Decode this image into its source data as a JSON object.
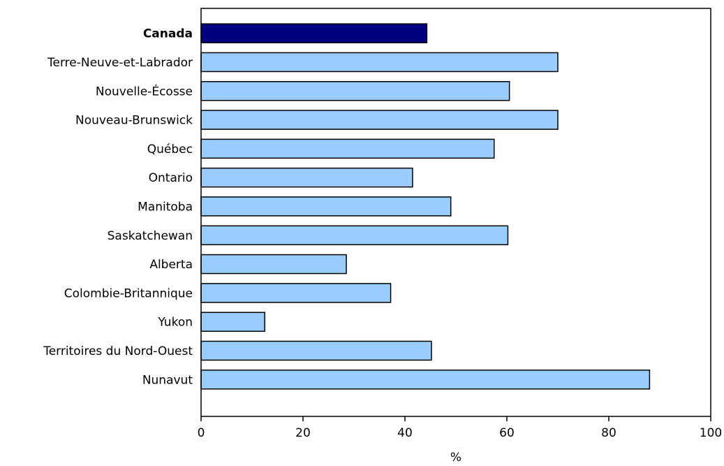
{
  "chart_data": {
    "type": "bar",
    "orientation": "horizontal",
    "categories": [
      "Canada",
      "Terre-Neuve-et-Labrador",
      "Nouvelle-Écosse",
      "Nouveau-Brunswick",
      "Québec",
      "Ontario",
      "Manitoba",
      "Saskatchewan",
      "Alberta",
      "Colombie-Britannique",
      "Yukon",
      "Territoires du Nord-Ouest",
      "Nunavut"
    ],
    "values": [
      44.3,
      70.0,
      60.5,
      70.0,
      57.5,
      41.5,
      49.0,
      60.2,
      28.5,
      37.2,
      12.5,
      45.2,
      88.0
    ],
    "highlight_category": "Canada",
    "xlabel": "%",
    "ylabel": "",
    "title": "",
    "xlim": [
      0,
      100
    ],
    "xticks": [
      0,
      20,
      40,
      60,
      80,
      100
    ],
    "grid": false,
    "legend": "none",
    "colors": {
      "highlight_bar": "#000080",
      "bar": "#99ccff",
      "bar_stroke": "#000000",
      "axis": "#000000"
    }
  }
}
